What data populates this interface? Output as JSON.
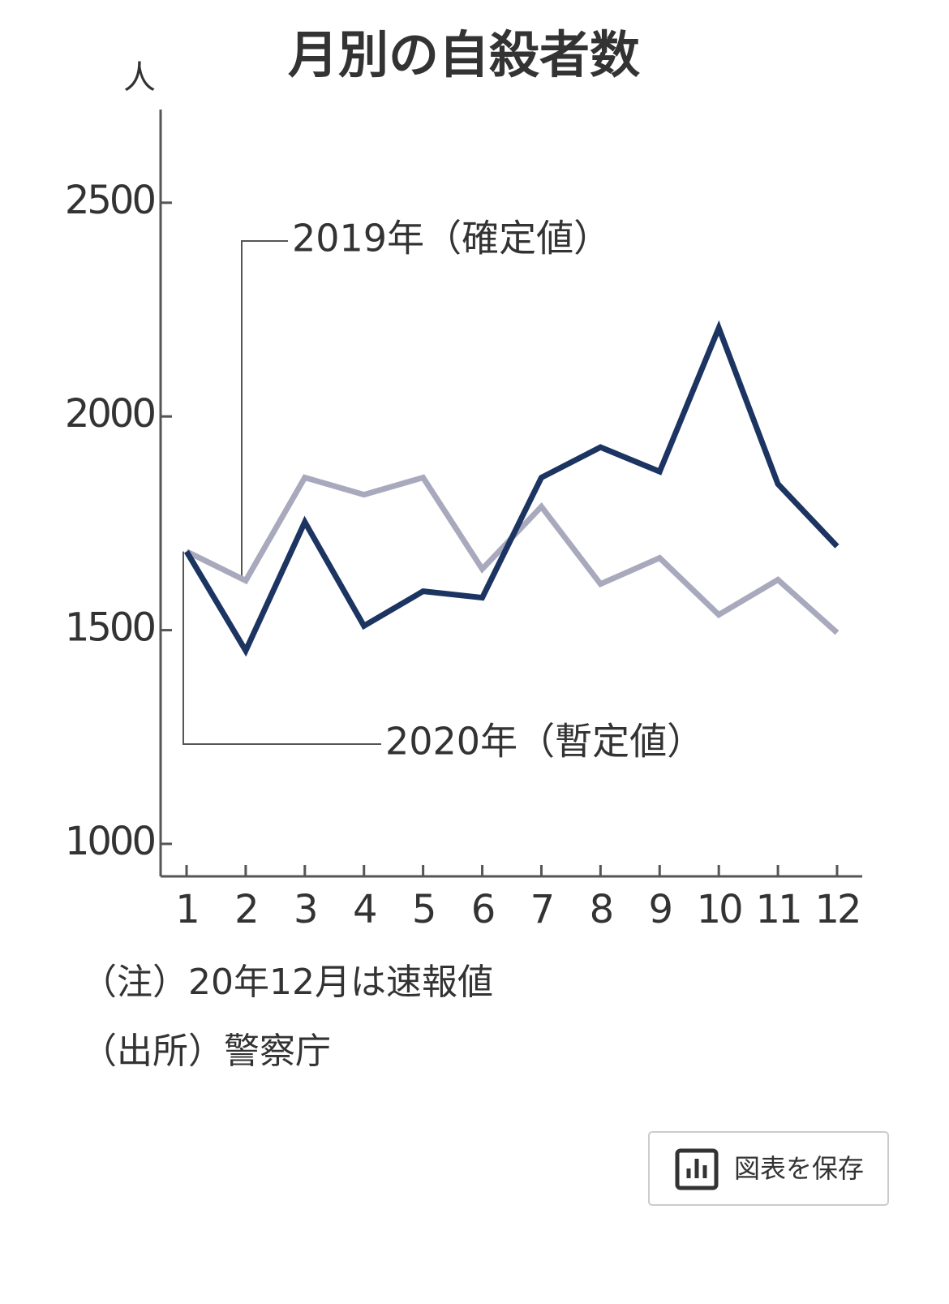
{
  "chart_data": {
    "type": "line",
    "title": "月別の自殺者数",
    "y_unit": "人",
    "categories": [
      "1",
      "2",
      "3",
      "4",
      "5",
      "6",
      "7",
      "8",
      "9",
      "10",
      "11",
      "12"
    ],
    "series": [
      {
        "name": "2019年（確定値）",
        "color": "#a9a9bd",
        "values": [
          1684,
          1616,
          1857,
          1817,
          1857,
          1643,
          1789,
          1608,
          1669,
          1536,
          1618,
          1494
        ]
      },
      {
        "name": "2020年（暫定値）",
        "color": "#1c3461",
        "values": [
          1684,
          1452,
          1753,
          1510,
          1591,
          1576,
          1857,
          1928,
          1871,
          2207,
          1842,
          1696
        ]
      }
    ],
    "ylim": [
      924,
      2718
    ],
    "yticks": [
      1000,
      1500,
      2000,
      2500
    ],
    "notes": [
      "（注）20年12月は速報値",
      "（出所）警察庁"
    ]
  },
  "button": {
    "label": "図表を保存"
  }
}
